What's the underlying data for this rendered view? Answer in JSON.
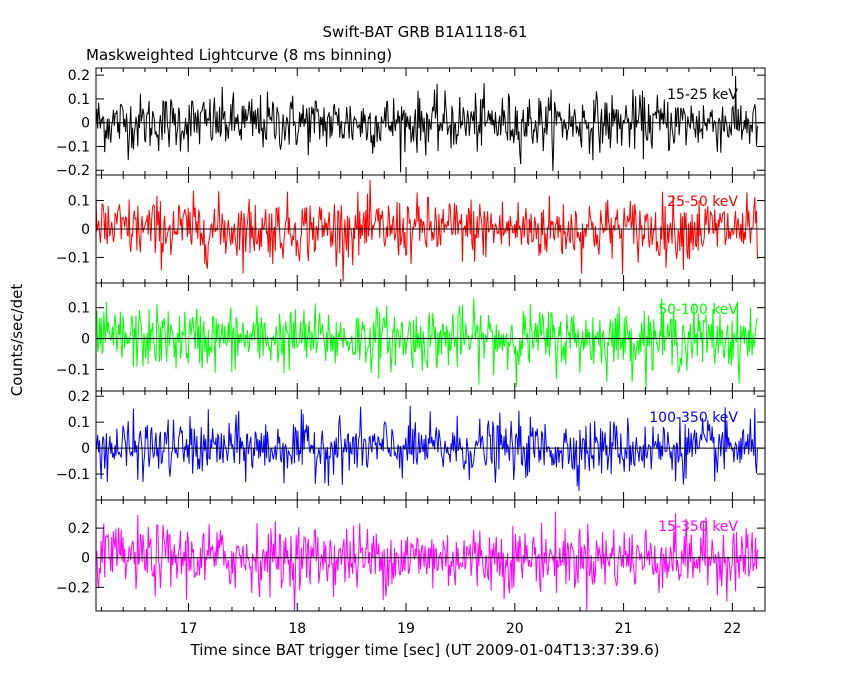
{
  "figure": {
    "title": "Swift-BAT GRB B1A1118-61",
    "subtitle": "Maskweighted Lightcurve (8 ms binning)",
    "xlabel": "Time since BAT trigger time [sec] (UT 2009-01-04T13:37:39.6)",
    "ylabel": "Counts/sec/det"
  },
  "chart_data": [
    {
      "type": "line",
      "panel": 1,
      "band_label": "15-25 keV",
      "color": "#000000",
      "xlim": [
        16.15,
        22.3
      ],
      "ylim": [
        -0.22,
        0.23
      ],
      "yticks": [
        -0.2,
        -0.1,
        0,
        0.1,
        0.2
      ],
      "ytick_labels": [
        "-0.2",
        "-0.1",
        "0",
        "0.1",
        "0.2"
      ],
      "x_start": 16.15,
      "x_end": 22.23,
      "bin_width": 0.008,
      "noise_sigma": 0.06,
      "zero_line": true
    },
    {
      "type": "line",
      "panel": 2,
      "band_label": "25-50 keV",
      "color": "#ff0000",
      "xlim": [
        16.15,
        22.3
      ],
      "ylim": [
        -0.19,
        0.19
      ],
      "yticks": [
        -0.1,
        0,
        0.1
      ],
      "ytick_labels": [
        "-0.1",
        "0",
        "0.1"
      ],
      "x_start": 16.15,
      "x_end": 22.23,
      "bin_width": 0.008,
      "noise_sigma": 0.055,
      "zero_line": true
    },
    {
      "type": "line",
      "panel": 3,
      "band_label": "50-100 keV",
      "color": "#00ff00",
      "xlim": [
        16.15,
        22.3
      ],
      "ylim": [
        -0.17,
        0.18
      ],
      "yticks": [
        -0.1,
        0,
        0.1
      ],
      "ytick_labels": [
        "-0.1",
        "0",
        "0.1"
      ],
      "x_start": 16.15,
      "x_end": 22.23,
      "bin_width": 0.008,
      "noise_sigma": 0.05,
      "zero_line": true
    },
    {
      "type": "line",
      "panel": 4,
      "band_label": "100-350 keV",
      "color": "#0000ff",
      "xlim": [
        16.15,
        22.3
      ],
      "ylim": [
        -0.2,
        0.22
      ],
      "yticks": [
        -0.1,
        0,
        0.1,
        0.2
      ],
      "ytick_labels": [
        "-0.1",
        "0",
        "0.1",
        "0.2"
      ],
      "x_start": 16.15,
      "x_end": 22.23,
      "bin_width": 0.008,
      "noise_sigma": 0.055,
      "zero_line": true
    },
    {
      "type": "line",
      "panel": 5,
      "band_label": "15-350 keV",
      "color": "#ff00ff",
      "xlim": [
        16.15,
        22.3
      ],
      "ylim": [
        -0.36,
        0.39
      ],
      "yticks": [
        -0.2,
        0,
        0.2
      ],
      "ytick_labels": [
        "-0.2",
        "0",
        "0.2"
      ],
      "x_start": 16.15,
      "x_end": 22.23,
      "bin_width": 0.008,
      "noise_sigma": 0.11,
      "zero_line": true,
      "xticks": [
        17,
        18,
        19,
        20,
        21,
        22
      ],
      "xtick_labels": [
        "17",
        "18",
        "19",
        "20",
        "21",
        "22"
      ]
    }
  ]
}
